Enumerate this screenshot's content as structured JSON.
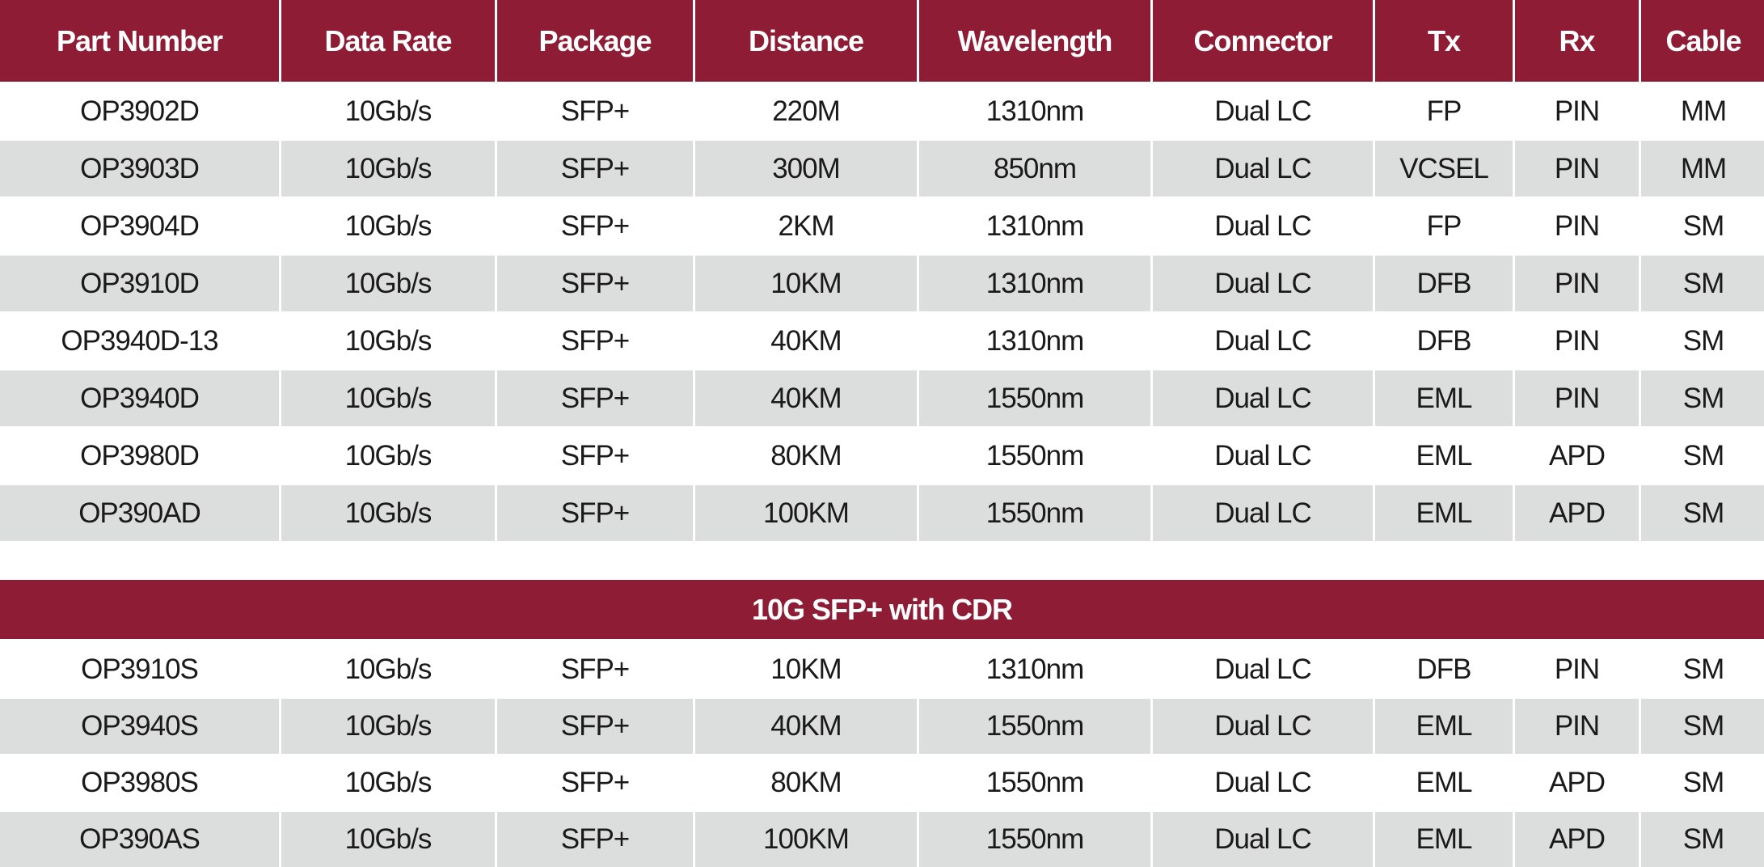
{
  "colors": {
    "header_bg": "#8e1c35",
    "row_alt": "#dcdddd"
  },
  "headers": [
    "Part Number",
    "Data Rate",
    "Package",
    "Distance",
    "Wavelength",
    "Connector",
    "Tx",
    "Rx",
    "Cable"
  ],
  "rows": [
    [
      "OP3902D",
      "10Gb/s",
      "SFP+",
      "220M",
      "1310nm",
      "Dual LC",
      "FP",
      "PIN",
      "MM"
    ],
    [
      "OP3903D",
      "10Gb/s",
      "SFP+",
      "300M",
      "850nm",
      "Dual LC",
      "VCSEL",
      "PIN",
      "MM"
    ],
    [
      "OP3904D",
      "10Gb/s",
      "SFP+",
      "2KM",
      "1310nm",
      "Dual LC",
      "FP",
      "PIN",
      "SM"
    ],
    [
      "OP3910D",
      "10Gb/s",
      "SFP+",
      "10KM",
      "1310nm",
      "Dual LC",
      "DFB",
      "PIN",
      "SM"
    ],
    [
      "OP3940D-13",
      "10Gb/s",
      "SFP+",
      "40KM",
      "1310nm",
      "Dual LC",
      "DFB",
      "PIN",
      "SM"
    ],
    [
      "OP3940D",
      "10Gb/s",
      "SFP+",
      "40KM",
      "1550nm",
      "Dual LC",
      "EML",
      "PIN",
      "SM"
    ],
    [
      "OP3980D",
      "10Gb/s",
      "SFP+",
      "80KM",
      "1550nm",
      "Dual LC",
      "EML",
      "APD",
      "SM"
    ],
    [
      "OP390AD",
      "10Gb/s",
      "SFP+",
      "100KM",
      "1550nm",
      "Dual LC",
      "EML",
      "APD",
      "SM"
    ]
  ],
  "section_title": "10G SFP+ with CDR",
  "cdr_rows": [
    [
      "OP3910S",
      "10Gb/s",
      "SFP+",
      "10KM",
      "1310nm",
      "Dual LC",
      "DFB",
      "PIN",
      "SM"
    ],
    [
      "OP3940S",
      "10Gb/s",
      "SFP+",
      "40KM",
      "1550nm",
      "Dual LC",
      "EML",
      "PIN",
      "SM"
    ],
    [
      "OP3980S",
      "10Gb/s",
      "SFP+",
      "80KM",
      "1550nm",
      "Dual LC",
      "EML",
      "APD",
      "SM"
    ],
    [
      "OP390AS",
      "10Gb/s",
      "SFP+",
      "100KM",
      "1550nm",
      "Dual LC",
      "EML",
      "APD",
      "SM"
    ]
  ]
}
